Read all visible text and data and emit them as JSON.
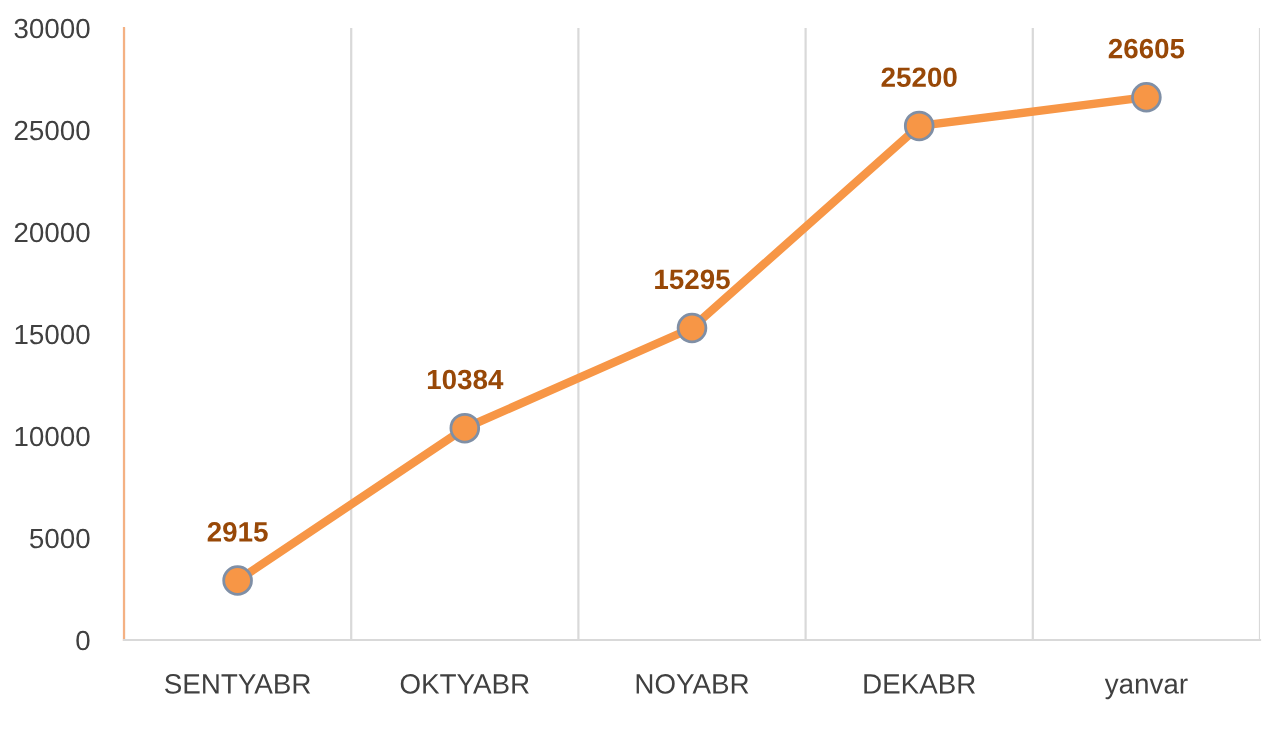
{
  "chart_data": {
    "type": "line",
    "categories": [
      "SENTYABR",
      "OKTYABR",
      "NOYABR",
      "DEKABR",
      "yanvar"
    ],
    "series": [
      {
        "color": "#f79646",
        "values": [
          2915,
          10384,
          15295,
          25200,
          26605
        ]
      }
    ],
    "ylim": [
      0,
      30000
    ],
    "yticks": [
      0,
      5000,
      10000,
      15000,
      20000,
      25000,
      30000
    ],
    "grid": "x",
    "marker": "circle",
    "line_style": "solid",
    "data_labels": true
  }
}
